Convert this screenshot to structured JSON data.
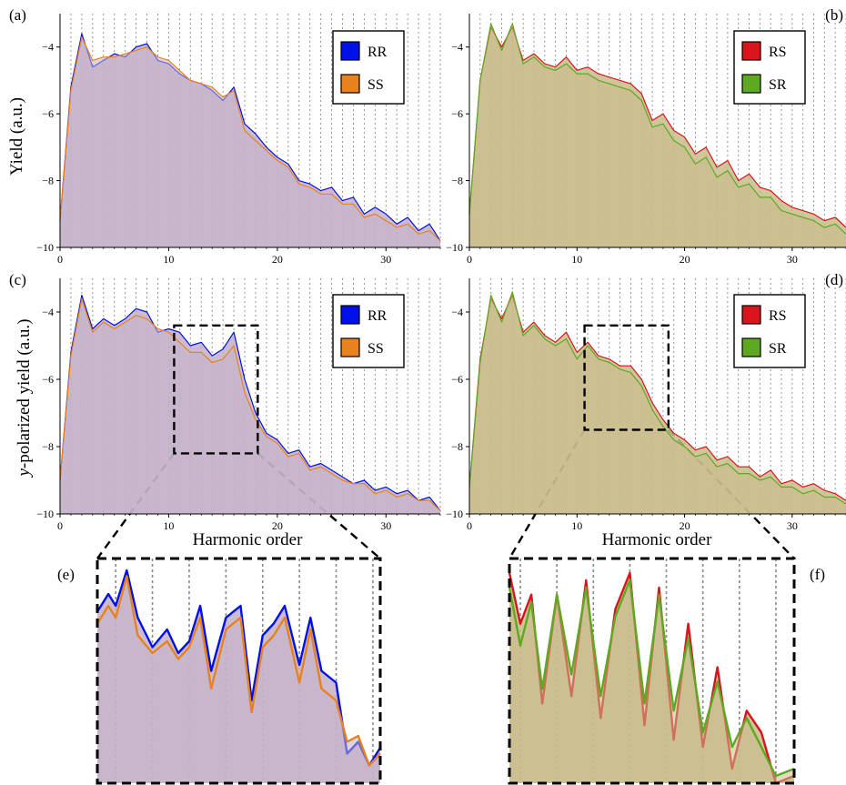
{
  "figure": {
    "x_axis_label": "Harmonic order",
    "top_y_label": "Yield (a.u.)",
    "bottom_y_label": "y-polarized yield (a.u.)",
    "bottom_y_label_italic": "y",
    "bottom_y_label_rest": "-polarized yield (a.u.)"
  },
  "series_colors": {
    "RR": "#0010e8",
    "SS": "#e8821c",
    "RS": "#d8141c",
    "SR": "#5ea822",
    "fill_a": "#c4b0c8",
    "fill_b": "#c8bc8a"
  },
  "chart_data": [
    {
      "panel": "(a)",
      "type": "area",
      "xlim": [
        0,
        35
      ],
      "ylim": [
        -10,
        -3
      ],
      "xticks": [
        "0",
        "10",
        "20",
        "30"
      ],
      "yticks": [
        "-4",
        "-6",
        "-8",
        "-10"
      ],
      "legend": [
        "RR",
        "SS"
      ],
      "series": [
        {
          "name": "RR",
          "x": [
            0,
            1,
            2,
            3,
            4,
            5,
            6,
            7,
            8,
            9,
            10,
            11,
            12,
            13,
            14,
            15,
            16,
            17,
            18,
            19,
            20,
            21,
            22,
            23,
            24,
            25,
            26,
            27,
            28,
            29,
            30,
            31,
            32,
            33,
            34,
            35
          ],
          "y": [
            -9.2,
            -5.2,
            -3.6,
            -4.6,
            -4.4,
            -4.2,
            -4.3,
            -4.0,
            -3.9,
            -4.4,
            -4.5,
            -4.8,
            -5.0,
            -5.1,
            -5.3,
            -5.6,
            -5.2,
            -6.3,
            -6.6,
            -7.0,
            -7.3,
            -7.5,
            -8.0,
            -8.1,
            -8.3,
            -8.2,
            -8.6,
            -8.5,
            -9.0,
            -8.8,
            -9.0,
            -9.3,
            -9.1,
            -9.5,
            -9.3,
            -9.8
          ]
        },
        {
          "name": "SS",
          "x": [
            0,
            1,
            2,
            3,
            4,
            5,
            6,
            7,
            8,
            9,
            10,
            11,
            12,
            13,
            14,
            15,
            16,
            17,
            18,
            19,
            20,
            21,
            22,
            23,
            24,
            25,
            26,
            27,
            28,
            29,
            30,
            31,
            32,
            33,
            34,
            35
          ],
          "y": [
            -9.2,
            -5.3,
            -3.7,
            -4.4,
            -4.3,
            -4.3,
            -4.2,
            -4.1,
            -4.0,
            -4.3,
            -4.4,
            -4.7,
            -5.0,
            -5.1,
            -5.2,
            -5.5,
            -5.3,
            -6.5,
            -6.8,
            -7.1,
            -7.4,
            -7.6,
            -8.1,
            -8.2,
            -8.4,
            -8.4,
            -8.7,
            -8.7,
            -9.1,
            -9.0,
            -9.2,
            -9.4,
            -9.3,
            -9.6,
            -9.5,
            -9.8
          ]
        }
      ]
    },
    {
      "panel": "(b)",
      "type": "area",
      "xlim": [
        0,
        35
      ],
      "ylim": [
        -10,
        -3
      ],
      "xticks": [
        "0",
        "10",
        "20",
        "30"
      ],
      "yticks": [
        "-4",
        "-6",
        "-8",
        "-10"
      ],
      "legend": [
        "RS",
        "SR"
      ],
      "series": [
        {
          "name": "RS",
          "x": [
            0,
            1,
            2,
            3,
            4,
            5,
            6,
            7,
            8,
            9,
            10,
            11,
            12,
            13,
            14,
            15,
            16,
            17,
            18,
            19,
            20,
            21,
            22,
            23,
            24,
            25,
            26,
            27,
            28,
            29,
            30,
            31,
            32,
            33,
            34,
            35
          ],
          "y": [
            -9.0,
            -5.0,
            -3.4,
            -4.0,
            -3.4,
            -4.4,
            -4.2,
            -4.5,
            -4.6,
            -4.3,
            -4.7,
            -4.6,
            -4.8,
            -4.9,
            -5.0,
            -5.1,
            -5.4,
            -6.2,
            -6.0,
            -6.5,
            -6.7,
            -7.2,
            -7.0,
            -7.6,
            -7.4,
            -8.0,
            -7.8,
            -8.2,
            -8.3,
            -8.6,
            -8.8,
            -8.9,
            -9.0,
            -9.2,
            -9.1,
            -9.4
          ]
        },
        {
          "name": "SR",
          "x": [
            0,
            1,
            2,
            3,
            4,
            5,
            6,
            7,
            8,
            9,
            10,
            11,
            12,
            13,
            14,
            15,
            16,
            17,
            18,
            19,
            20,
            21,
            22,
            23,
            24,
            25,
            26,
            27,
            28,
            29,
            30,
            31,
            32,
            33,
            34,
            35
          ],
          "y": [
            -9.0,
            -5.0,
            -3.3,
            -4.1,
            -3.3,
            -4.5,
            -4.3,
            -4.6,
            -4.7,
            -4.5,
            -4.8,
            -4.8,
            -5.0,
            -5.1,
            -5.2,
            -5.3,
            -5.6,
            -6.4,
            -6.3,
            -6.8,
            -7.0,
            -7.5,
            -7.3,
            -7.9,
            -7.7,
            -8.2,
            -8.1,
            -8.5,
            -8.5,
            -8.9,
            -9.0,
            -9.1,
            -9.2,
            -9.4,
            -9.3,
            -9.6
          ]
        }
      ]
    },
    {
      "panel": "(c)",
      "type": "area",
      "xlim": [
        0,
        35
      ],
      "ylim": [
        -10,
        -3
      ],
      "xticks": [
        "0",
        "10",
        "20",
        "30"
      ],
      "yticks": [
        "-4",
        "-6",
        "-8",
        "-10"
      ],
      "legend": [
        "RR",
        "SS"
      ],
      "zoom_box": {
        "x": [
          10.5,
          18.2
        ],
        "y": [
          -8.2,
          -4.4
        ]
      },
      "series": [
        {
          "name": "RR",
          "x": [
            0,
            1,
            2,
            3,
            4,
            5,
            6,
            7,
            8,
            9,
            10,
            11,
            12,
            13,
            14,
            15,
            16,
            17,
            18,
            19,
            20,
            21,
            22,
            23,
            24,
            25,
            26,
            27,
            28,
            29,
            30,
            31,
            32,
            33,
            34,
            35
          ],
          "y": [
            -9.0,
            -5.2,
            -3.5,
            -4.5,
            -4.2,
            -4.4,
            -4.2,
            -3.9,
            -4.0,
            -4.6,
            -4.5,
            -4.6,
            -5.0,
            -4.9,
            -5.3,
            -5.1,
            -4.6,
            -6.0,
            -7.0,
            -7.6,
            -7.8,
            -8.2,
            -8.1,
            -8.6,
            -8.5,
            -8.7,
            -8.9,
            -9.1,
            -9.0,
            -9.3,
            -9.2,
            -9.4,
            -9.3,
            -9.6,
            -9.5,
            -9.9
          ]
        },
        {
          "name": "SS",
          "x": [
            0,
            1,
            2,
            3,
            4,
            5,
            6,
            7,
            8,
            9,
            10,
            11,
            12,
            13,
            14,
            15,
            16,
            17,
            18,
            19,
            20,
            21,
            22,
            23,
            24,
            25,
            26,
            27,
            28,
            29,
            30,
            31,
            32,
            33,
            34,
            35
          ],
          "y": [
            -9.0,
            -5.3,
            -3.6,
            -4.6,
            -4.3,
            -4.5,
            -4.3,
            -4.1,
            -4.2,
            -4.5,
            -4.6,
            -4.9,
            -5.2,
            -5.2,
            -5.5,
            -5.4,
            -5.0,
            -6.4,
            -7.2,
            -7.7,
            -7.9,
            -8.3,
            -8.2,
            -8.7,
            -8.6,
            -8.8,
            -9.0,
            -9.1,
            -9.1,
            -9.4,
            -9.3,
            -9.5,
            -9.4,
            -9.6,
            -9.6,
            -9.9
          ]
        }
      ]
    },
    {
      "panel": "(d)",
      "type": "area",
      "xlim": [
        0,
        35
      ],
      "ylim": [
        -10,
        -3
      ],
      "xticks": [
        "0",
        "10",
        "20",
        "30"
      ],
      "yticks": [
        "-4",
        "-6",
        "-8",
        "-10"
      ],
      "legend": [
        "RS",
        "SR"
      ],
      "zoom_box": {
        "x": [
          10.7,
          18.5
        ],
        "y": [
          -7.5,
          -4.4
        ]
      },
      "series": [
        {
          "name": "RS",
          "x": [
            0,
            1,
            2,
            3,
            4,
            5,
            6,
            7,
            8,
            9,
            10,
            11,
            12,
            13,
            14,
            15,
            16,
            17,
            18,
            19,
            20,
            21,
            22,
            23,
            24,
            25,
            26,
            27,
            28,
            29,
            30,
            31,
            32,
            33,
            34,
            35
          ],
          "y": [
            -9.2,
            -5.4,
            -3.6,
            -4.2,
            -3.5,
            -4.6,
            -4.3,
            -4.7,
            -4.9,
            -4.6,
            -5.2,
            -4.9,
            -5.3,
            -5.4,
            -5.6,
            -5.6,
            -6.0,
            -6.7,
            -7.2,
            -7.6,
            -7.8,
            -8.1,
            -8.0,
            -8.4,
            -8.3,
            -8.6,
            -8.6,
            -8.9,
            -8.7,
            -9.1,
            -9.0,
            -9.2,
            -9.1,
            -9.3,
            -9.4,
            -9.6
          ]
        },
        {
          "name": "SR",
          "x": [
            0,
            1,
            2,
            3,
            4,
            5,
            6,
            7,
            8,
            9,
            10,
            11,
            12,
            13,
            14,
            15,
            16,
            17,
            18,
            19,
            20,
            21,
            22,
            23,
            24,
            25,
            26,
            27,
            28,
            29,
            30,
            31,
            32,
            33,
            34,
            35
          ],
          "y": [
            -9.2,
            -5.5,
            -3.5,
            -4.3,
            -3.4,
            -4.7,
            -4.4,
            -4.8,
            -5.0,
            -4.8,
            -5.4,
            -5.0,
            -5.4,
            -5.5,
            -5.7,
            -5.8,
            -6.2,
            -6.9,
            -7.4,
            -7.8,
            -8.0,
            -8.3,
            -8.2,
            -8.6,
            -8.5,
            -8.8,
            -8.8,
            -9.0,
            -8.9,
            -9.2,
            -9.2,
            -9.4,
            -9.3,
            -9.5,
            -9.5,
            -9.7
          ]
        }
      ]
    },
    {
      "panel": "(e)",
      "type": "area",
      "xlim": [
        10.5,
        18.2
      ],
      "ylim": [
        -8.2,
        -4.4
      ],
      "series": [
        {
          "name": "RR",
          "x": [
            10.5,
            10.8,
            11.0,
            11.3,
            11.6,
            12.0,
            12.4,
            12.7,
            13.0,
            13.3,
            13.6,
            14.0,
            14.4,
            14.7,
            15.0,
            15.3,
            15.6,
            16.0,
            16.3,
            16.6,
            17.0,
            17.3,
            17.6,
            17.9,
            18.2
          ],
          "y": [
            -5.3,
            -5.0,
            -5.2,
            -4.6,
            -5.4,
            -5.9,
            -5.6,
            -6.0,
            -5.8,
            -5.2,
            -6.3,
            -5.4,
            -5.2,
            -6.8,
            -5.7,
            -5.5,
            -5.2,
            -6.2,
            -5.4,
            -6.3,
            -6.5,
            -7.7,
            -7.5,
            -7.9,
            -7.6
          ]
        },
        {
          "name": "SS",
          "x": [
            10.5,
            10.8,
            11.0,
            11.3,
            11.6,
            12.0,
            12.4,
            12.7,
            13.0,
            13.3,
            13.6,
            14.0,
            14.4,
            14.7,
            15.0,
            15.3,
            15.6,
            16.0,
            16.3,
            16.6,
            17.0,
            17.3,
            17.6,
            17.9,
            18.2
          ],
          "y": [
            -5.5,
            -5.2,
            -5.4,
            -4.7,
            -5.7,
            -6.0,
            -5.8,
            -6.1,
            -5.9,
            -5.4,
            -6.6,
            -5.6,
            -5.4,
            -7.0,
            -5.9,
            -5.7,
            -5.4,
            -6.5,
            -5.6,
            -6.6,
            -6.8,
            -7.5,
            -7.4,
            -7.9,
            -7.7
          ]
        }
      ]
    },
    {
      "panel": "(f)",
      "type": "area",
      "xlim": [
        10.7,
        18.5
      ],
      "ylim": [
        -7.5,
        -4.4
      ],
      "series": [
        {
          "name": "RS",
          "x": [
            10.7,
            11.0,
            11.3,
            11.6,
            12.0,
            12.4,
            12.8,
            13.2,
            13.6,
            14.0,
            14.4,
            14.8,
            15.2,
            15.6,
            16.0,
            16.4,
            16.8,
            17.2,
            17.6,
            18.0,
            18.5
          ],
          "y": [
            -4.6,
            -5.3,
            -4.9,
            -6.4,
            -4.9,
            -6.3,
            -4.7,
            -6.6,
            -5.1,
            -4.6,
            -6.7,
            -4.8,
            -6.9,
            -5.3,
            -7.0,
            -5.9,
            -7.3,
            -6.5,
            -6.8,
            -7.5,
            -7.4
          ]
        },
        {
          "name": "SR",
          "x": [
            10.7,
            11.0,
            11.3,
            11.6,
            12.0,
            12.4,
            12.8,
            13.2,
            13.6,
            14.0,
            14.4,
            14.8,
            15.2,
            15.6,
            16.0,
            16.4,
            16.8,
            17.2,
            17.6,
            18.0,
            18.5
          ],
          "y": [
            -4.8,
            -5.6,
            -5.0,
            -6.2,
            -4.9,
            -6.0,
            -4.8,
            -6.3,
            -5.2,
            -4.7,
            -6.4,
            -4.9,
            -6.5,
            -5.5,
            -6.8,
            -6.1,
            -7.0,
            -6.6,
            -7.0,
            -7.4,
            -7.3
          ]
        }
      ]
    }
  ]
}
